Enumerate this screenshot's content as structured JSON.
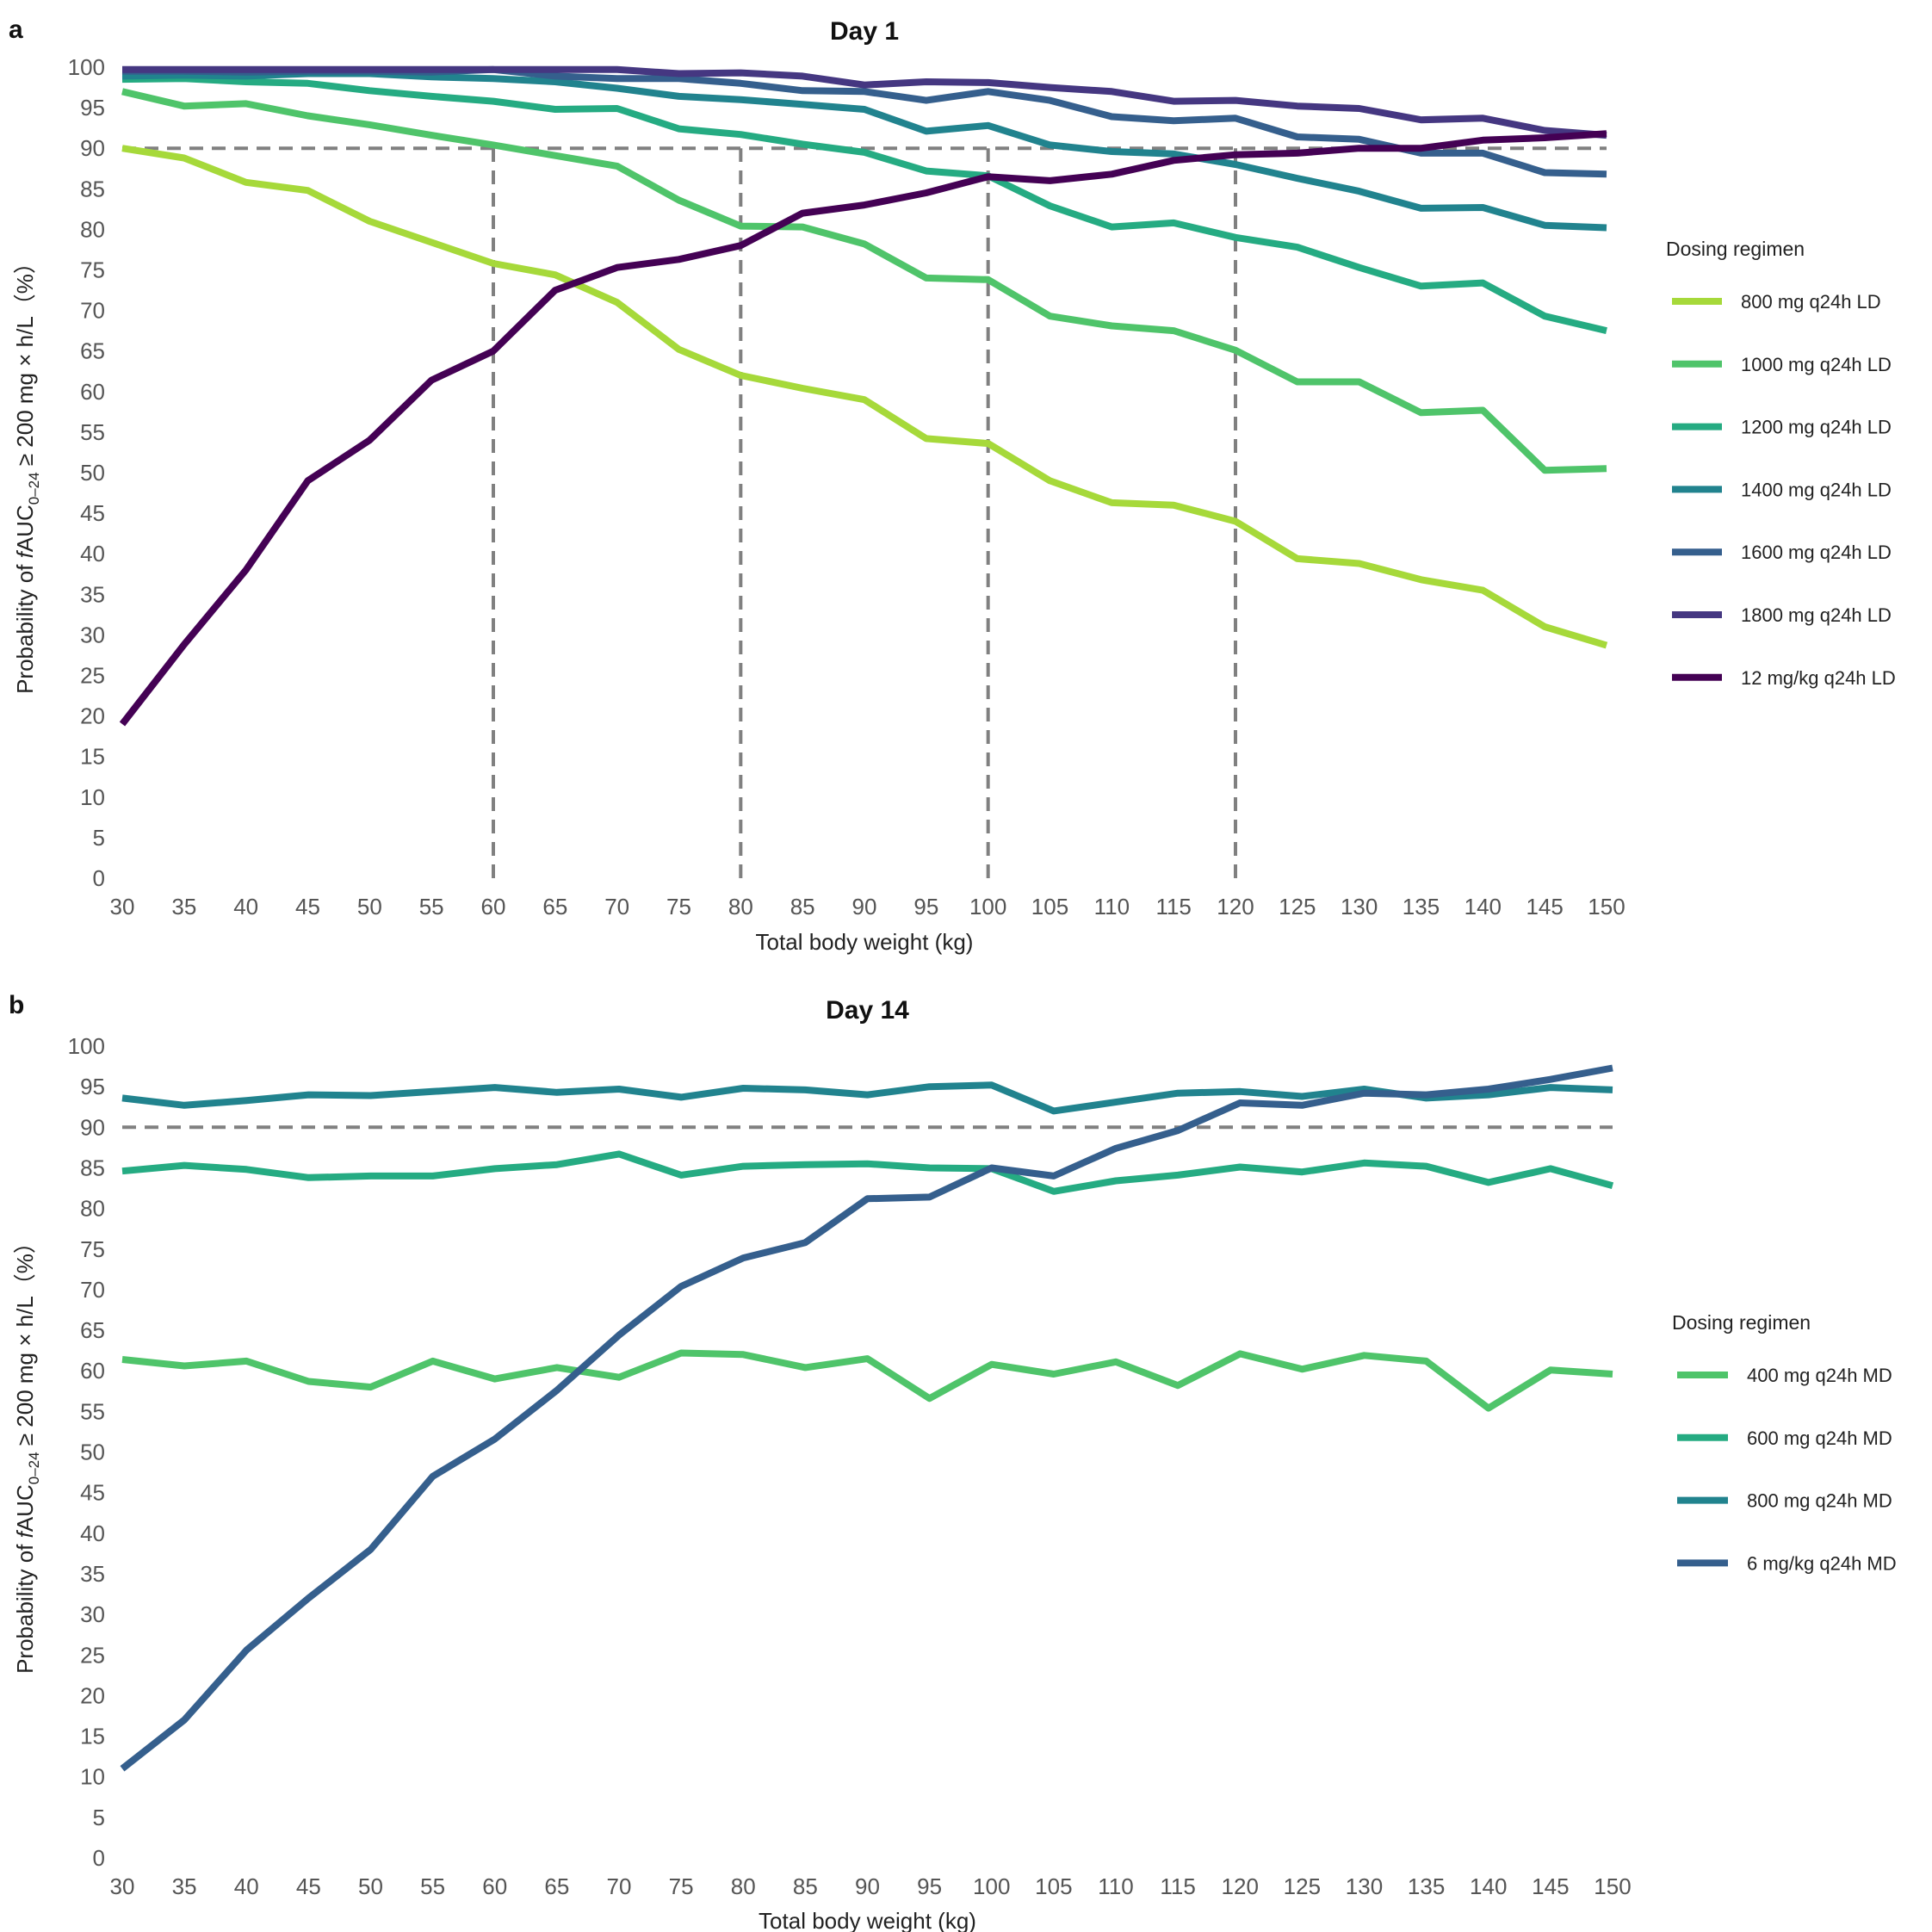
{
  "chart_data": [
    {
      "type": "line",
      "panel_label": "a",
      "title": "Day 1",
      "xlabel": "Total body weight (kg)",
      "ylabel": "Probability  of  fAUC0–24  ≥ 200 mg × h/L（%）",
      "ylabel_parts": {
        "pre": "Probability  of  ",
        "italic": "f",
        "main": "AUC",
        "sub": "0–24",
        "post": "  ≥ 200 mg × h/L（%）"
      },
      "xlim": [
        30,
        150
      ],
      "ylim": [
        0,
        100
      ],
      "x_ticks": [
        30,
        35,
        40,
        45,
        50,
        55,
        60,
        65,
        70,
        75,
        80,
        85,
        90,
        95,
        100,
        105,
        110,
        115,
        120,
        125,
        130,
        135,
        140,
        145,
        150
      ],
      "y_ticks": [
        0,
        5,
        10,
        15,
        20,
        25,
        30,
        35,
        40,
        45,
        50,
        55,
        60,
        65,
        70,
        75,
        80,
        85,
        90,
        95,
        100
      ],
      "reference_line_y": 90,
      "reference_lines_x": [
        60,
        80,
        100,
        120
      ],
      "grid": false,
      "legend_position": "right",
      "legend_title": "Dosing regimen",
      "x": [
        30,
        35,
        40,
        45,
        50,
        55,
        60,
        65,
        70,
        75,
        80,
        85,
        90,
        95,
        100,
        105,
        110,
        115,
        120,
        125,
        130,
        135,
        140,
        145,
        150
      ],
      "series": [
        {
          "name": "800  mg  q24h LD",
          "color": "#a6d93a",
          "values": [
            90,
            88.8,
            85.8,
            84.8,
            81,
            78.4,
            75.8,
            74.4,
            71,
            65.2,
            62,
            60.4,
            59,
            54.2,
            53.6,
            49,
            46.3,
            46,
            44,
            39.4,
            38.8,
            36.8,
            35.5,
            31,
            28.7
          ]
        },
        {
          "name": "1000 mg  q24h LD",
          "color": "#4fc46a",
          "values": [
            97,
            95.2,
            95.5,
            94,
            92.9,
            91.6,
            90.4,
            89.1,
            87.8,
            83.6,
            80.4,
            80.3,
            78.2,
            74,
            73.8,
            69.3,
            68.1,
            67.5,
            65.1,
            61.2,
            61.2,
            57.4,
            57.7,
            50.3,
            50.5
          ]
        },
        {
          "name": "1200 mg  q24h LD",
          "color": "#25ab82",
          "values": [
            98.5,
            98.6,
            98.2,
            98,
            97.1,
            96.4,
            95.8,
            94.8,
            94.9,
            92.4,
            91.7,
            90.5,
            89.5,
            87.2,
            86.6,
            82.9,
            80.3,
            80.8,
            79,
            77.8,
            75.3,
            73,
            73.4,
            69.3,
            67.5
          ]
        },
        {
          "name": "1400 mg  q24h LD",
          "color": "#21838e",
          "values": [
            98.9,
            99,
            98.9,
            99.2,
            99.2,
            98.8,
            98.6,
            98.2,
            97.4,
            96.4,
            96,
            95.4,
            94.8,
            92.1,
            92.8,
            90.4,
            89.6,
            89.3,
            88,
            86.3,
            84.7,
            82.6,
            82.7,
            80.5,
            80.2
          ]
        },
        {
          "name": "1600 mg  q24h LD",
          "color": "#355f8d",
          "values": [
            99.5,
            99.5,
            99.4,
            99.5,
            99.5,
            99.4,
            99.7,
            98.9,
            98.6,
            98.6,
            98,
            97.1,
            97,
            95.9,
            97,
            95.9,
            93.9,
            93.4,
            93.7,
            91.4,
            91.1,
            89.4,
            89.4,
            87,
            86.8
          ]
        },
        {
          "name": "1800 mg  q24h LD",
          "color": "#453781",
          "values": [
            99.7,
            99.7,
            99.7,
            99.7,
            99.7,
            99.7,
            99.7,
            99.7,
            99.7,
            99.2,
            99.3,
            98.9,
            97.8,
            98.2,
            98.1,
            97.5,
            97,
            95.8,
            95.9,
            95.2,
            94.9,
            93.5,
            93.7,
            92.2,
            91.6
          ]
        },
        {
          "name": "12 mg/kg q24h LD",
          "color": "#440154",
          "values": [
            19,
            28.8,
            38,
            49,
            54,
            61.4,
            65,
            72.5,
            75.3,
            76.3,
            78,
            82,
            83,
            84.5,
            86.5,
            86,
            86.8,
            88.5,
            89.2,
            89.4,
            90,
            90,
            91,
            91.3,
            91.8
          ]
        }
      ]
    },
    {
      "type": "line",
      "panel_label": "b",
      "title": "Day 14",
      "xlabel": "Total body weight (kg)",
      "ylabel": "Probability  of  fAUC0–24  ≥ 200 mg × h/L（%）",
      "ylabel_parts": {
        "pre": "Probability  of  ",
        "italic": "f",
        "main": "AUC",
        "sub": "0–24",
        "post": "  ≥ 200 mg × h/L（%）"
      },
      "xlim": [
        30,
        150
      ],
      "ylim": [
        0,
        100
      ],
      "x_ticks": [
        30,
        35,
        40,
        45,
        50,
        55,
        60,
        65,
        70,
        75,
        80,
        85,
        90,
        95,
        100,
        105,
        110,
        115,
        120,
        125,
        130,
        135,
        140,
        145,
        150
      ],
      "y_ticks": [
        0,
        5,
        10,
        15,
        20,
        25,
        30,
        35,
        40,
        45,
        50,
        55,
        60,
        65,
        70,
        75,
        80,
        85,
        90,
        95,
        100
      ],
      "reference_line_y": 90,
      "reference_lines_x": [],
      "grid": false,
      "legend_position": "right",
      "legend_title": "Dosing regimen",
      "x": [
        30,
        35,
        40,
        45,
        50,
        55,
        60,
        65,
        70,
        75,
        80,
        85,
        90,
        95,
        100,
        105,
        110,
        115,
        120,
        125,
        130,
        135,
        140,
        145,
        150
      ],
      "series": [
        {
          "name": "400 mg  q24h MD",
          "color": "#4fc46a",
          "values": [
            61.4,
            60.6,
            61.2,
            58.7,
            58,
            61.2,
            59,
            60.4,
            59.2,
            62.2,
            62,
            60.4,
            61.5,
            56.6,
            60.8,
            59.6,
            61.1,
            58.2,
            62.1,
            60.2,
            61.9,
            61.2,
            55.4,
            60.1,
            59.6
          ]
        },
        {
          "name": "600 mg  q24h MD",
          "color": "#25ab82",
          "values": [
            84.6,
            85.3,
            84.8,
            83.8,
            84,
            84,
            84.9,
            85.4,
            86.7,
            84.1,
            85.2,
            85.4,
            85.5,
            85,
            84.9,
            82.1,
            83.4,
            84.1,
            85.1,
            84.5,
            85.6,
            85.2,
            83.2,
            84.9,
            82.8
          ]
        },
        {
          "name": "800 mg  q24h MD",
          "color": "#21838e",
          "values": [
            93.6,
            92.7,
            93.3,
            94,
            93.9,
            94.4,
            94.9,
            94.3,
            94.7,
            93.7,
            94.8,
            94.6,
            94,
            95,
            95.2,
            92,
            93.1,
            94.2,
            94.4,
            93.8,
            94.7,
            93.6,
            94,
            94.9,
            94.6
          ]
        },
        {
          "name": "6 mg/kg q24h MD",
          "color": "#355f8d",
          "values": [
            11,
            17,
            25.6,
            32,
            38,
            47,
            51.6,
            57.6,
            64.4,
            70.4,
            73.9,
            75.8,
            81.2,
            81.4,
            85,
            84,
            87.4,
            89.6,
            93,
            92.7,
            94.2,
            94,
            94.7,
            95.9,
            97.3
          ]
        }
      ]
    }
  ]
}
